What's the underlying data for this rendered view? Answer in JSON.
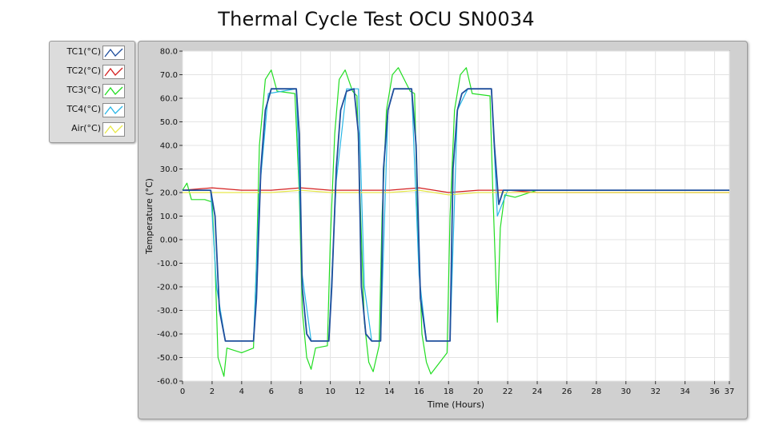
{
  "chart_data": {
    "type": "line",
    "title": "Thermal Cycle Test OCU SN0034",
    "xlabel": "Time (Hours)",
    "ylabel": "Temperature (°C)",
    "xlim": [
      0,
      37
    ],
    "ylim": [
      -60,
      80
    ],
    "x_ticks": [
      "0",
      "2",
      "4",
      "6",
      "8",
      "10",
      "12",
      "14",
      "16",
      "18",
      "20",
      "22",
      "24",
      "26",
      "28",
      "30",
      "32",
      "34",
      "36",
      "37"
    ],
    "y_ticks": [
      "80.0",
      "70.0",
      "60.0",
      "50.0",
      "40.0",
      "30.0",
      "20.0",
      "10.0",
      "0.00",
      "-10.0",
      "-20.0",
      "-30.0",
      "-40.0",
      "-50.0",
      "-60.0"
    ],
    "grid": true,
    "legend_position": "left",
    "series": [
      {
        "name": "TC1(°C)",
        "color": "#1f4e9c",
        "x": [
          0,
          1.9,
          2.2,
          2.5,
          2.9,
          4.8,
          5.0,
          5.3,
          5.6,
          6.0,
          7.7,
          7.9,
          8.1,
          8.4,
          8.7,
          9.9,
          10.1,
          10.4,
          10.7,
          11.1,
          11.6,
          11.9,
          12.1,
          12.4,
          12.8,
          13.4,
          13.6,
          13.9,
          14.3,
          15.5,
          15.8,
          16.1,
          16.5,
          18.1,
          18.3,
          18.6,
          18.9,
          19.3,
          20.9,
          21.1,
          21.4,
          21.7,
          22.0,
          37
        ],
        "y": [
          21,
          21,
          10,
          -30,
          -43,
          -43,
          -25,
          30,
          55,
          64,
          64,
          45,
          -20,
          -40,
          -43,
          -43,
          -20,
          30,
          55,
          63,
          64,
          45,
          -20,
          -40,
          -43,
          -43,
          30,
          55,
          64,
          64,
          40,
          -25,
          -43,
          -43,
          30,
          55,
          62,
          64,
          64,
          40,
          15,
          21,
          21,
          21
        ]
      },
      {
        "name": "TC2(°C)",
        "color": "#d42020",
        "x": [
          0,
          2,
          4,
          6,
          8,
          10,
          12,
          14,
          16,
          18,
          20,
          22,
          24,
          26,
          28,
          30,
          32,
          34,
          36,
          37
        ],
        "y": [
          21,
          22,
          21,
          21,
          22,
          21,
          21,
          21,
          22,
          20,
          21,
          21,
          20,
          20,
          20,
          20,
          20,
          20,
          20,
          20
        ]
      },
      {
        "name": "TC3(°C)",
        "color": "#22dd22",
        "x": [
          0,
          0.3,
          0.6,
          1.5,
          2.0,
          2.2,
          2.4,
          2.8,
          3.0,
          4.0,
          4.8,
          5.0,
          5.2,
          5.6,
          6.0,
          6.4,
          7.6,
          7.9,
          8.1,
          8.4,
          8.7,
          9.0,
          9.8,
          10.0,
          10.3,
          10.6,
          11.0,
          11.5,
          11.8,
          12.0,
          12.3,
          12.6,
          12.9,
          13.3,
          13.5,
          13.8,
          14.2,
          14.6,
          15.4,
          15.7,
          15.9,
          16.2,
          16.5,
          16.8,
          17.9,
          18.1,
          18.4,
          18.8,
          19.2,
          19.6,
          20.8,
          21.0,
          21.3,
          21.5,
          21.8,
          22.5,
          24,
          26,
          28,
          30,
          32,
          34,
          36,
          37
        ],
        "y": [
          21,
          24,
          17,
          17,
          16,
          -10,
          -50,
          -58,
          -46,
          -48,
          -46,
          -10,
          40,
          68,
          72,
          63,
          62,
          20,
          -30,
          -50,
          -55,
          -46,
          -45,
          0,
          45,
          68,
          72,
          63,
          61,
          20,
          -35,
          -52,
          -56,
          -45,
          10,
          55,
          70,
          73,
          63,
          62,
          10,
          -40,
          -52,
          -57,
          -48,
          10,
          55,
          70,
          73,
          62,
          61,
          20,
          -35,
          5,
          19,
          18,
          21,
          21,
          21,
          21,
          21,
          21,
          21,
          21
        ]
      },
      {
        "name": "TC4(°C)",
        "color": "#29b6e6",
        "x": [
          0,
          1.9,
          2.3,
          2.9,
          4.8,
          5.2,
          5.8,
          7.7,
          8.1,
          8.7,
          9.9,
          10.4,
          11.1,
          11.9,
          12.3,
          12.8,
          13.4,
          13.9,
          14.3,
          15.5,
          16.0,
          16.5,
          18.1,
          18.6,
          19.3,
          20.9,
          21.3,
          22.0,
          37
        ],
        "y": [
          21,
          21,
          -20,
          -43,
          -43,
          20,
          62,
          64,
          -15,
          -43,
          -43,
          25,
          64,
          64,
          -20,
          -43,
          -43,
          55,
          64,
          64,
          -15,
          -43,
          -43,
          55,
          64,
          64,
          10,
          21,
          21
        ]
      },
      {
        "name": "Air(°C)",
        "color": "#e8e84a",
        "x": [
          0,
          2,
          4,
          6,
          8,
          10,
          12,
          14,
          16,
          18,
          20,
          22,
          24,
          26,
          28,
          30,
          32,
          34,
          36,
          37
        ],
        "y": [
          20,
          20,
          20,
          20,
          21,
          20,
          20,
          20,
          21,
          19,
          20,
          20,
          20,
          20,
          20,
          20,
          20,
          20,
          20,
          20
        ]
      }
    ]
  }
}
